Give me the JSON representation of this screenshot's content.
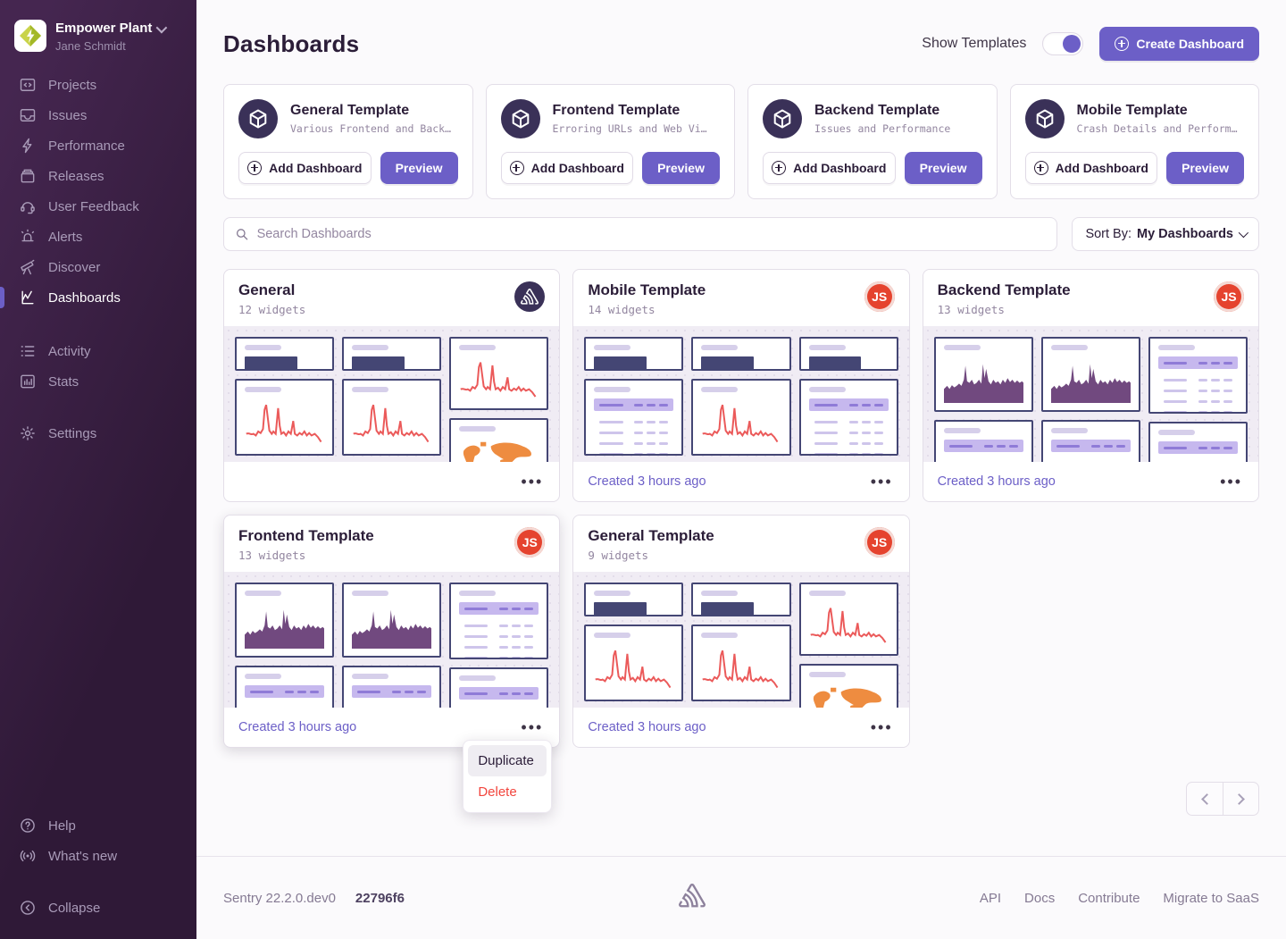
{
  "colors": {
    "accent": "#6C5FC7",
    "sidebar_dark": "#2f1937",
    "avatar_red": "#E5432E",
    "line_red": "#EB5A5A",
    "area_purple": "#71497F",
    "map_orange": "#EE8C40",
    "widget_navy": "#444674"
  },
  "sidebar": {
    "org": {
      "name": "Empower Plant",
      "user": "Jane Schmidt",
      "logo_icon": "empower-plant-logo"
    },
    "items": [
      {
        "label": "Projects",
        "icon": "projects-icon",
        "active": false
      },
      {
        "label": "Issues",
        "icon": "issues-icon",
        "active": false
      },
      {
        "label": "Performance",
        "icon": "performance-icon",
        "active": false
      },
      {
        "label": "Releases",
        "icon": "releases-icon",
        "active": false
      },
      {
        "label": "User Feedback",
        "icon": "user-feedback-icon",
        "active": false
      },
      {
        "label": "Alerts",
        "icon": "alerts-icon",
        "active": false
      },
      {
        "label": "Discover",
        "icon": "discover-icon",
        "active": false
      },
      {
        "label": "Dashboards",
        "icon": "dashboards-icon",
        "active": true
      }
    ],
    "secondary": [
      {
        "label": "Activity",
        "icon": "activity-icon"
      },
      {
        "label": "Stats",
        "icon": "stats-icon"
      }
    ],
    "settings": {
      "label": "Settings",
      "icon": "gear-icon"
    },
    "bottom": [
      {
        "label": "Help",
        "icon": "help-icon"
      },
      {
        "label": "What's new",
        "icon": "broadcast-icon"
      },
      {
        "label": "Collapse",
        "icon": "collapse-icon"
      }
    ]
  },
  "header": {
    "title": "Dashboards",
    "show_templates_label": "Show Templates",
    "toggle_state": "on",
    "create_button": "Create Dashboard"
  },
  "templates": [
    {
      "name": "General Template",
      "desc": "Various Frontend and Back…",
      "add_label": "Add Dashboard",
      "preview_label": "Preview"
    },
    {
      "name": "Frontend Template",
      "desc": "Erroring URLs and Web Vi…",
      "add_label": "Add Dashboard",
      "preview_label": "Preview"
    },
    {
      "name": "Backend Template",
      "desc": "Issues and Performance",
      "add_label": "Add Dashboard",
      "preview_label": "Preview"
    },
    {
      "name": "Mobile Template",
      "desc": "Crash Details and Perform…",
      "add_label": "Add Dashboard",
      "preview_label": "Preview"
    }
  ],
  "search": {
    "placeholder": "Search Dashboards"
  },
  "sort": {
    "label": "Sort By:",
    "value": "My Dashboards"
  },
  "dashboards": [
    {
      "title": "General",
      "widgets": "12 widgets",
      "avatar": "sentry",
      "initials": "",
      "created": "",
      "layout": "general"
    },
    {
      "title": "Mobile Template",
      "widgets": "14 widgets",
      "avatar": "user",
      "initials": "JS",
      "created": "Created 3 hours ago",
      "layout": "mobile"
    },
    {
      "title": "Backend Template",
      "widgets": "13 widgets",
      "avatar": "user",
      "initials": "JS",
      "created": "Created 3 hours ago",
      "layout": "backend"
    },
    {
      "title": "Frontend Template",
      "widgets": "13 widgets",
      "avatar": "user",
      "initials": "JS",
      "created": "Created 3 hours ago",
      "layout": "backend",
      "menu_open": true
    },
    {
      "title": "General Template",
      "widgets": "9 widgets",
      "avatar": "user",
      "initials": "JS",
      "created": "Created 3 hours ago",
      "layout": "general"
    }
  ],
  "preview_layouts": {
    "general": [
      [
        "big",
        "line",
        "stub"
      ],
      [
        "big",
        "line",
        "stub"
      ],
      [
        "lineTall",
        "map"
      ]
    ],
    "mobile": [
      [
        "big",
        "table",
        "stub"
      ],
      [
        "big",
        "line",
        "stub"
      ],
      [
        "big",
        "table",
        "stub"
      ]
    ],
    "backend": [
      [
        "area",
        "tableStub"
      ],
      [
        "area",
        "tableStub"
      ],
      [
        "tableTall",
        "tableStub"
      ]
    ]
  },
  "context_menu": {
    "items": [
      {
        "label": "Duplicate",
        "danger": false,
        "hovered": true
      },
      {
        "label": "Delete",
        "danger": true,
        "hovered": false
      }
    ]
  },
  "footer": {
    "version": "Sentry 22.2.0.dev0",
    "build": "22796f6",
    "links": [
      "API",
      "Docs",
      "Contribute",
      "Migrate to SaaS"
    ]
  }
}
